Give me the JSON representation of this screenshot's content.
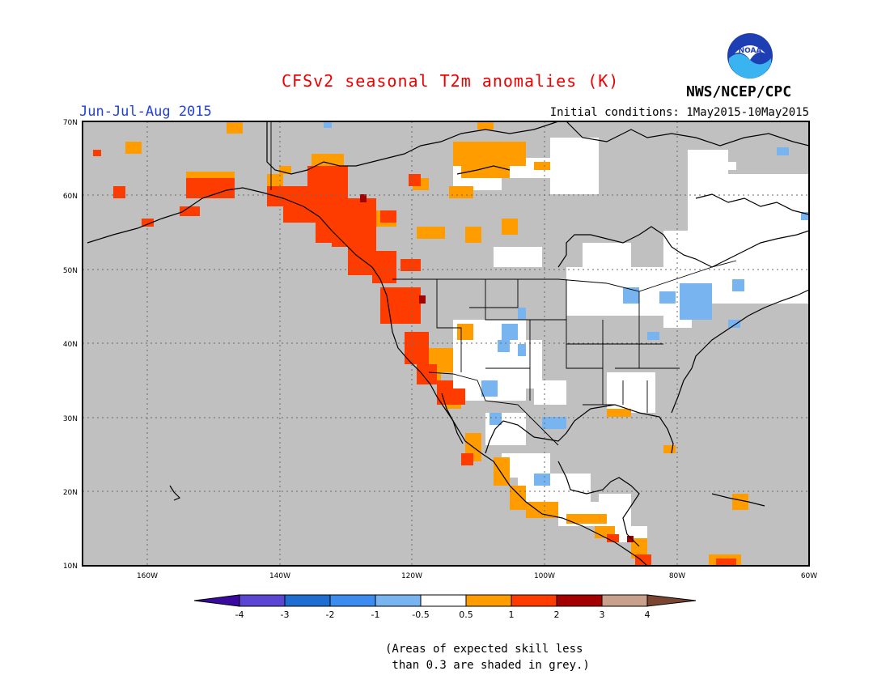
{
  "header": {
    "title": "CFSv2 seasonal T2m anomalies (K)",
    "season": "Jun-Jul-Aug 2015",
    "initial_conditions": "Initial conditions: 1May2015-10May2015",
    "organization": "NWS/NCEP/CPC",
    "logo_text": "NOAA"
  },
  "map": {
    "lat_labels": [
      "70N",
      "60N",
      "50N",
      "40N",
      "30N",
      "20N",
      "10N"
    ],
    "lon_labels": [
      "160W",
      "140W",
      "120W",
      "100W",
      "80W",
      "60W"
    ],
    "colors": {
      "grey_low_skill": "#c0c0c0",
      "neutral": "#ffffff",
      "warm_0_5_1": "#ff9d00",
      "warm_1_2": "#ff3c00",
      "warm_2_3": "#a50000",
      "cool_m0_5_m1": "#78b4f0",
      "cool_m1_m2": "#3c8cf0"
    }
  },
  "colorbar": {
    "labels": [
      "-4",
      "-3",
      "-2",
      "-1",
      "-0.5",
      "0.5",
      "1",
      "2",
      "3",
      "4"
    ],
    "colors": [
      "#3a0aa0",
      "#5a46d2",
      "#1e6ed2",
      "#3c8cf0",
      "#78b4f0",
      "#ffffff",
      "#ff9d00",
      "#ff3c00",
      "#a50000",
      "#c8a08c",
      "#7a4632"
    ]
  },
  "footnote": {
    "line1": "(Areas of expected skill less",
    "line2": " than 0.3 are shaded in grey.)"
  }
}
